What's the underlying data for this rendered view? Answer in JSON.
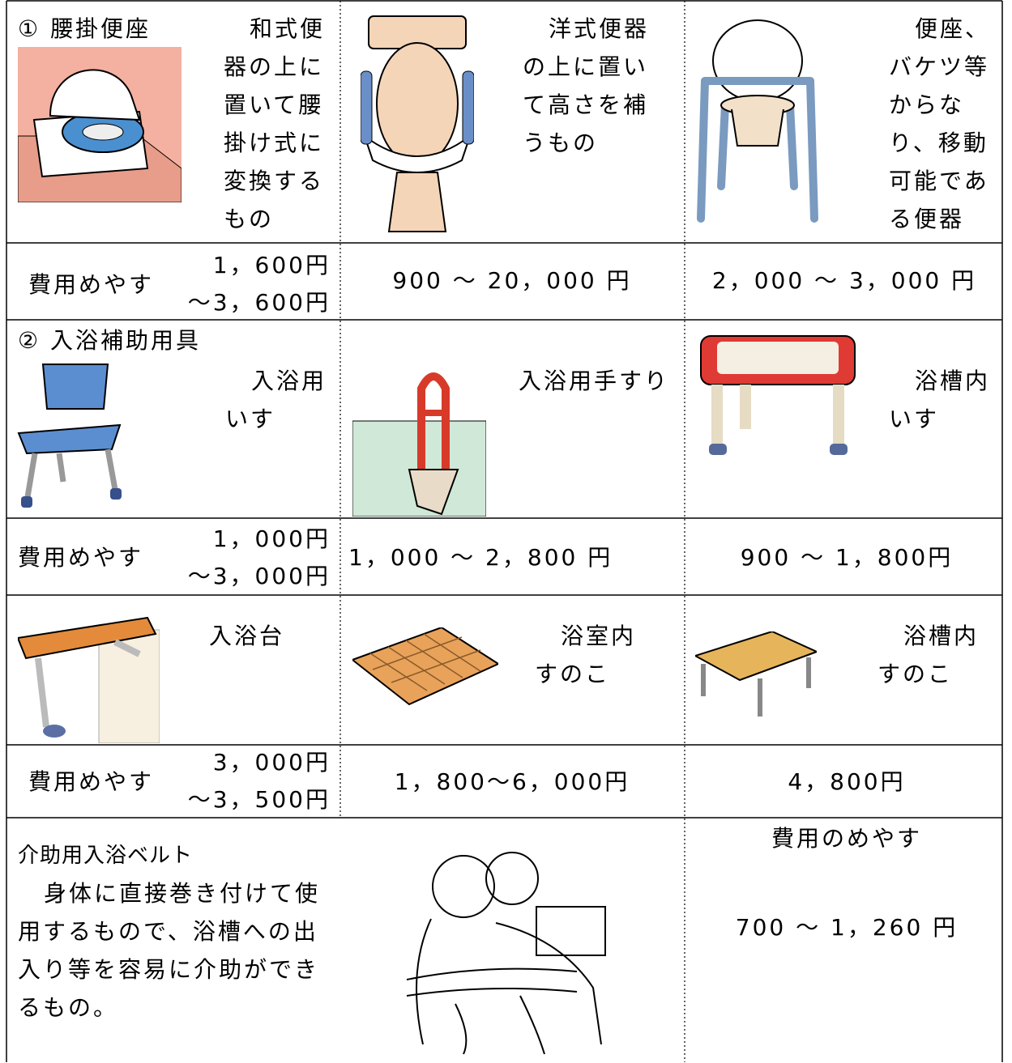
{
  "table": {
    "rows": [
      {
        "heading": "① 腰掛便座",
        "items": [
          "和式便器の上に置いて腰掛け式に変換するもの",
          "洋式便器の上に置いて高さを補うもの",
          "便座、バケツ等からなり、移動可能である便器"
        ]
      },
      {
        "label": "費用めやす",
        "range": [
          "1，600円",
          "～3，600円"
        ],
        "costs": [
          "900 ～ 20，000 円",
          "2，000 ～ 3，000 円"
        ]
      },
      {
        "heading": "② 入浴補助用具",
        "items": [
          "入浴用いす",
          "入浴用手すり",
          "浴槽内いす"
        ]
      },
      {
        "label": "費用めやす",
        "range": [
          "1，000円",
          "～3，000円"
        ],
        "costs": [
          "1，000 ～ 2，800 円",
          "900 ～ 1，800円"
        ]
      },
      {
        "items": [
          "入浴台",
          "浴室内すのこ",
          "浴槽内すのこ"
        ]
      },
      {
        "label": "費用めやす",
        "range": [
          "3，000円",
          "～3，500円"
        ],
        "costs": [
          "1，800～6，000円",
          "4，800円"
        ]
      },
      {
        "heading": "介助用入浴ベルト",
        "description": "身体に直接巻き付けて使用するもので、浴槽への出入り等を容易に介助ができるもの。",
        "cost_label": "費用のめやす",
        "cost": "700 ～ 1，260 円"
      }
    ]
  }
}
